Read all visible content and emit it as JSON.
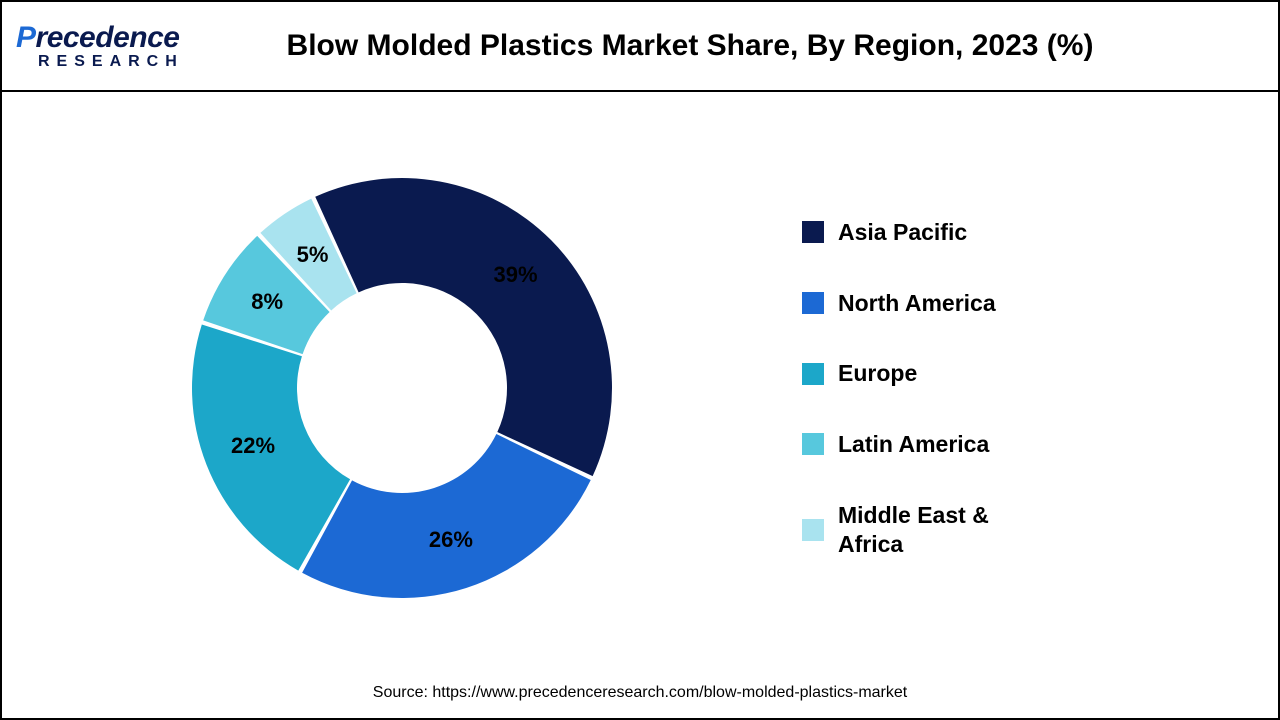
{
  "brand": {
    "name_styled_prefix": "P",
    "name_styled_rest": "recedence",
    "subline": "RESEARCH",
    "color_primary": "#0a1a4f",
    "color_accent": "#1c69d4"
  },
  "chart": {
    "type": "donut",
    "title": "Blow Molded Plastics Market Share, By Region, 2023 (%)",
    "title_fontsize": 30,
    "background_color": "#ffffff",
    "border_color": "#000000",
    "donut_outer_radius": 210,
    "donut_inner_radius": 105,
    "slice_gap_deg": 1.2,
    "start_angle_deg": -25,
    "label_fontsize": 22,
    "label_radius": 160,
    "slices": [
      {
        "label": "Asia Pacific",
        "value": 39,
        "color": "#0a1a4f",
        "display": "39%"
      },
      {
        "label": "North America",
        "value": 26,
        "color": "#1c69d4",
        "display": "26%"
      },
      {
        "label": "Europe",
        "value": 22,
        "color": "#1ca7c9",
        "display": "22%"
      },
      {
        "label": "Latin America",
        "value": 8,
        "color": "#57c8dd",
        "display": "8%"
      },
      {
        "label": "Middle East & Africa",
        "value": 5,
        "color": "#a9e3ef",
        "display": "5%"
      }
    ],
    "legend": {
      "swatch_size": 22,
      "fontsize": 23,
      "gap": 42
    }
  },
  "source": "Source: https://www.precedenceresearch.com/blow-molded-plastics-market"
}
